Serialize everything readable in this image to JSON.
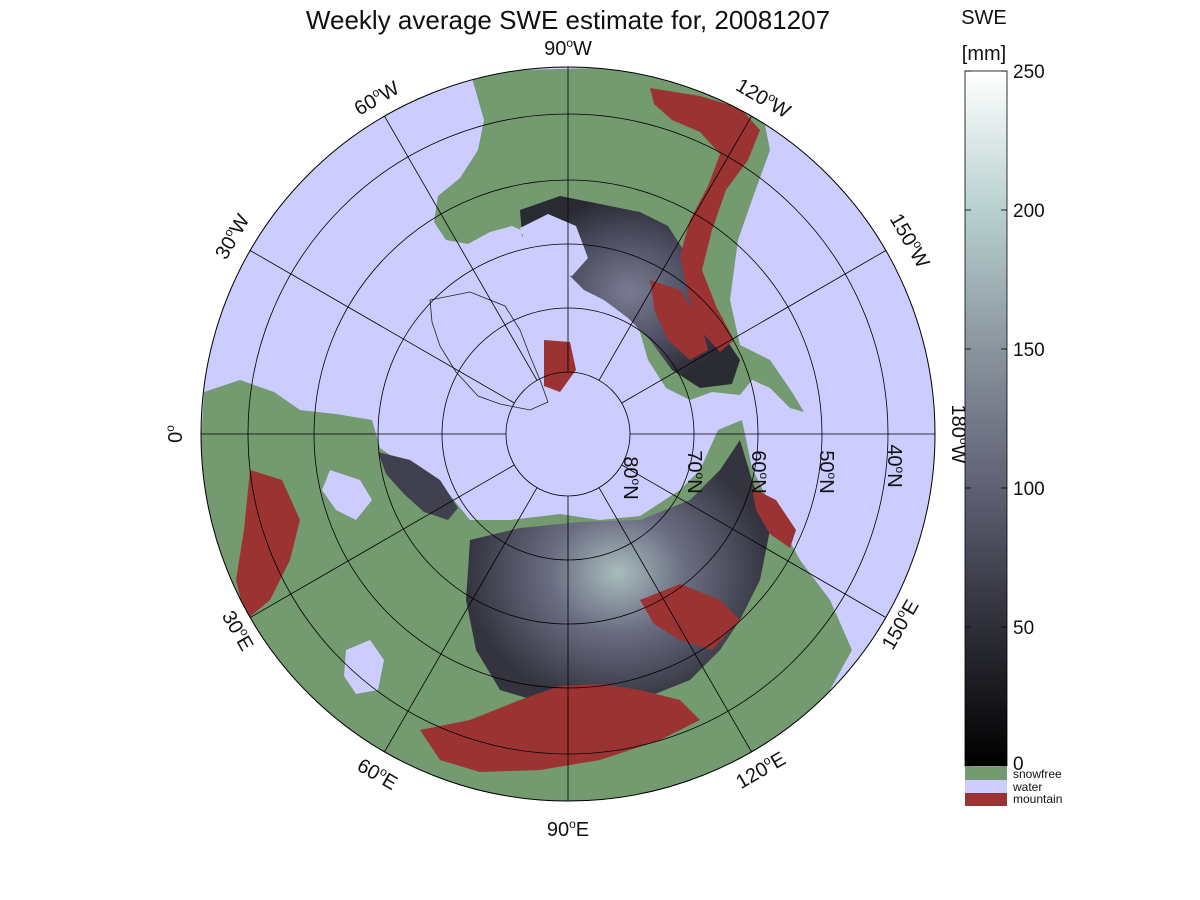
{
  "title": "Weekly average SWE estimate for, 20081207",
  "map": {
    "projection": "north-polar-stereographic",
    "center": "North Pole",
    "latitude_circles": [
      {
        "lat": 80,
        "label": "80",
        "suffix": "N"
      },
      {
        "lat": 70,
        "label": "70",
        "suffix": "N"
      },
      {
        "lat": 60,
        "label": "60",
        "suffix": "N"
      },
      {
        "lat": 50,
        "label": "50",
        "suffix": "N"
      },
      {
        "lat": 40,
        "label": "40",
        "suffix": "N"
      }
    ],
    "outer_latitude": 35,
    "meridians": [
      {
        "lon": 0,
        "label": "0",
        "suffix": ""
      },
      {
        "lon": -30,
        "label": "30",
        "suffix": "W"
      },
      {
        "lon": -60,
        "label": "60",
        "suffix": "W"
      },
      {
        "lon": -90,
        "label": "90",
        "suffix": "W"
      },
      {
        "lon": -120,
        "label": "120",
        "suffix": "W"
      },
      {
        "lon": -150,
        "label": "150",
        "suffix": "W"
      },
      {
        "lon": 180,
        "label": "180",
        "suffix": "W"
      },
      {
        "lon": 150,
        "label": "150",
        "suffix": "E"
      },
      {
        "lon": 120,
        "label": "120",
        "suffix": "E"
      },
      {
        "lon": 90,
        "label": "90",
        "suffix": "E"
      },
      {
        "lon": 60,
        "label": "60",
        "suffix": "E"
      },
      {
        "lon": 30,
        "label": "30",
        "suffix": "E"
      }
    ],
    "degree_symbol": "o"
  },
  "colorbar": {
    "title_line1": "SWE",
    "title_line2": "[mm]",
    "range": [
      0,
      250
    ],
    "ticks": [
      "0",
      "50",
      "100",
      "150",
      "200",
      "250"
    ],
    "colormap": [
      "#000000",
      "#2e2e38",
      "#5f6074",
      "#8a949e",
      "#b8d0cf",
      "#ffffff"
    ]
  },
  "legend": {
    "categories": [
      {
        "label": "snowfree",
        "color": "#749a70"
      },
      {
        "label": "water",
        "color": "#ccccff"
      },
      {
        "label": "mountain",
        "color": "#9b3333"
      }
    ]
  },
  "colors": {
    "ocean": "#ccccff",
    "land": "#749a70",
    "mountain": "#9b3333",
    "snow_low": "#1c1c24",
    "snow_mid": "#4c4c62",
    "snow_high": "#9fb2b2",
    "grid": "#000000"
  }
}
